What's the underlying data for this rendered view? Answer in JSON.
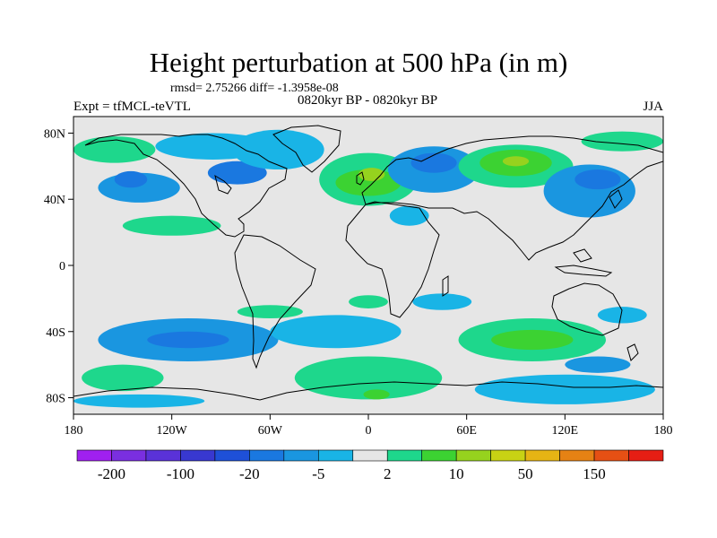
{
  "chart_data": {
    "type": "heatmap",
    "title": "Height perturbation at 500 hPa (in m)",
    "stats_text": "rmsd= 2.75266 diff= -1.3958e-08",
    "period_text": "0820kyr BP - 0820kyr BP",
    "left_label": "Expt = tfMCL-teVTL",
    "right_label": "JJA",
    "projection": "cylindrical-equidistant",
    "xlim": [
      -180,
      180
    ],
    "ylim": [
      -90,
      90
    ],
    "x_ticks": [
      {
        "value": -180,
        "label": "180"
      },
      {
        "value": -120,
        "label": "120W"
      },
      {
        "value": -60,
        "label": "60W"
      },
      {
        "value": 0,
        "label": "0"
      },
      {
        "value": 60,
        "label": "60E"
      },
      {
        "value": 120,
        "label": "120E"
      },
      {
        "value": 180,
        "label": "180"
      }
    ],
    "y_ticks": [
      {
        "value": 80,
        "label": "80N"
      },
      {
        "value": 40,
        "label": "40N"
      },
      {
        "value": 0,
        "label": "0"
      },
      {
        "value": -40,
        "label": "40S"
      },
      {
        "value": -80,
        "label": "80S"
      }
    ],
    "background_color": "#e6e6e6",
    "colorbar": {
      "colors": [
        "#a020f0",
        "#7a2fe0",
        "#5a32d8",
        "#3838d0",
        "#1e50d8",
        "#1a78e0",
        "#1a96e0",
        "#19b4e6",
        "#e6e6e6",
        "#1ed78c",
        "#3cd232",
        "#96d21e",
        "#c8d214",
        "#e6b414",
        "#e68214",
        "#e65014",
        "#e61e14"
      ],
      "labels": [
        {
          "after_index": 0,
          "text": "-200"
        },
        {
          "after_index": 2,
          "text": "-100"
        },
        {
          "after_index": 4,
          "text": "-20"
        },
        {
          "after_index": 6,
          "text": "-5"
        },
        {
          "after_index": 8,
          "text": "2"
        },
        {
          "after_index": 10,
          "text": "10"
        },
        {
          "after_index": 12,
          "text": "50"
        },
        {
          "after_index": 14,
          "text": "150"
        }
      ]
    },
    "anomaly_regions": [
      {
        "lon": -140,
        "lat": 47,
        "rlon": 25,
        "rlat": 9,
        "level": 6
      },
      {
        "lon": -145,
        "lat": 52,
        "rlon": 10,
        "rlat": 5,
        "level": 5
      },
      {
        "lon": -95,
        "lat": 72,
        "rlon": 35,
        "rlat": 8,
        "level": 7
      },
      {
        "lon": -80,
        "lat": 56,
        "rlon": 18,
        "rlat": 7,
        "level": 5
      },
      {
        "lon": -155,
        "lat": 70,
        "rlon": 25,
        "rlat": 8,
        "level": 9
      },
      {
        "lon": -120,
        "lat": 24,
        "rlon": 30,
        "rlat": 6,
        "level": 9
      },
      {
        "lon": -55,
        "lat": 70,
        "rlon": 28,
        "rlat": 12,
        "level": 7
      },
      {
        "lon": 0,
        "lat": 52,
        "rlon": 30,
        "rlat": 16,
        "level": 9
      },
      {
        "lon": 0,
        "lat": 50,
        "rlon": 20,
        "rlat": 8,
        "level": 10
      },
      {
        "lon": 2,
        "lat": 55,
        "rlon": 8,
        "rlat": 4,
        "level": 11
      },
      {
        "lon": 40,
        "lat": 58,
        "rlon": 28,
        "rlat": 14,
        "level": 6
      },
      {
        "lon": 40,
        "lat": 62,
        "rlon": 14,
        "rlat": 6,
        "level": 5
      },
      {
        "lon": 25,
        "lat": 30,
        "rlon": 12,
        "rlat": 6,
        "level": 7
      },
      {
        "lon": 90,
        "lat": 60,
        "rlon": 35,
        "rlat": 13,
        "level": 9
      },
      {
        "lon": 90,
        "lat": 62,
        "rlon": 22,
        "rlat": 8,
        "level": 10
      },
      {
        "lon": 90,
        "lat": 63,
        "rlon": 8,
        "rlat": 3,
        "level": 11
      },
      {
        "lon": 135,
        "lat": 45,
        "rlon": 28,
        "rlat": 16,
        "level": 6
      },
      {
        "lon": 140,
        "lat": 52,
        "rlon": 14,
        "rlat": 6,
        "level": 5
      },
      {
        "lon": 155,
        "lat": 75,
        "rlon": 25,
        "rlat": 6,
        "level": 9
      },
      {
        "lon": -60,
        "lat": -28,
        "rlon": 20,
        "rlat": 4,
        "level": 9
      },
      {
        "lon": 0,
        "lat": -22,
        "rlon": 12,
        "rlat": 4,
        "level": 9
      },
      {
        "lon": 45,
        "lat": -22,
        "rlon": 18,
        "rlat": 5,
        "level": 7
      },
      {
        "lon": -110,
        "lat": -45,
        "rlon": 55,
        "rlat": 13,
        "level": 6
      },
      {
        "lon": -110,
        "lat": -45,
        "rlon": 25,
        "rlat": 5,
        "level": 5
      },
      {
        "lon": -20,
        "lat": -40,
        "rlon": 40,
        "rlat": 10,
        "level": 7
      },
      {
        "lon": 100,
        "lat": -45,
        "rlon": 45,
        "rlat": 13,
        "level": 9
      },
      {
        "lon": 100,
        "lat": -45,
        "rlon": 25,
        "rlat": 6,
        "level": 10
      },
      {
        "lon": 155,
        "lat": -30,
        "rlon": 15,
        "rlat": 5,
        "level": 7
      },
      {
        "lon": -150,
        "lat": -68,
        "rlon": 25,
        "rlat": 8,
        "level": 9
      },
      {
        "lon": 0,
        "lat": -68,
        "rlon": 45,
        "rlat": 13,
        "level": 9
      },
      {
        "lon": 5,
        "lat": -78,
        "rlon": 8,
        "rlat": 3,
        "level": 10
      },
      {
        "lon": -140,
        "lat": -82,
        "rlon": 40,
        "rlat": 4,
        "level": 7
      },
      {
        "lon": 120,
        "lat": -75,
        "rlon": 55,
        "rlat": 9,
        "level": 7
      },
      {
        "lon": 140,
        "lat": -60,
        "rlon": 20,
        "rlat": 5,
        "level": 6
      }
    ]
  }
}
